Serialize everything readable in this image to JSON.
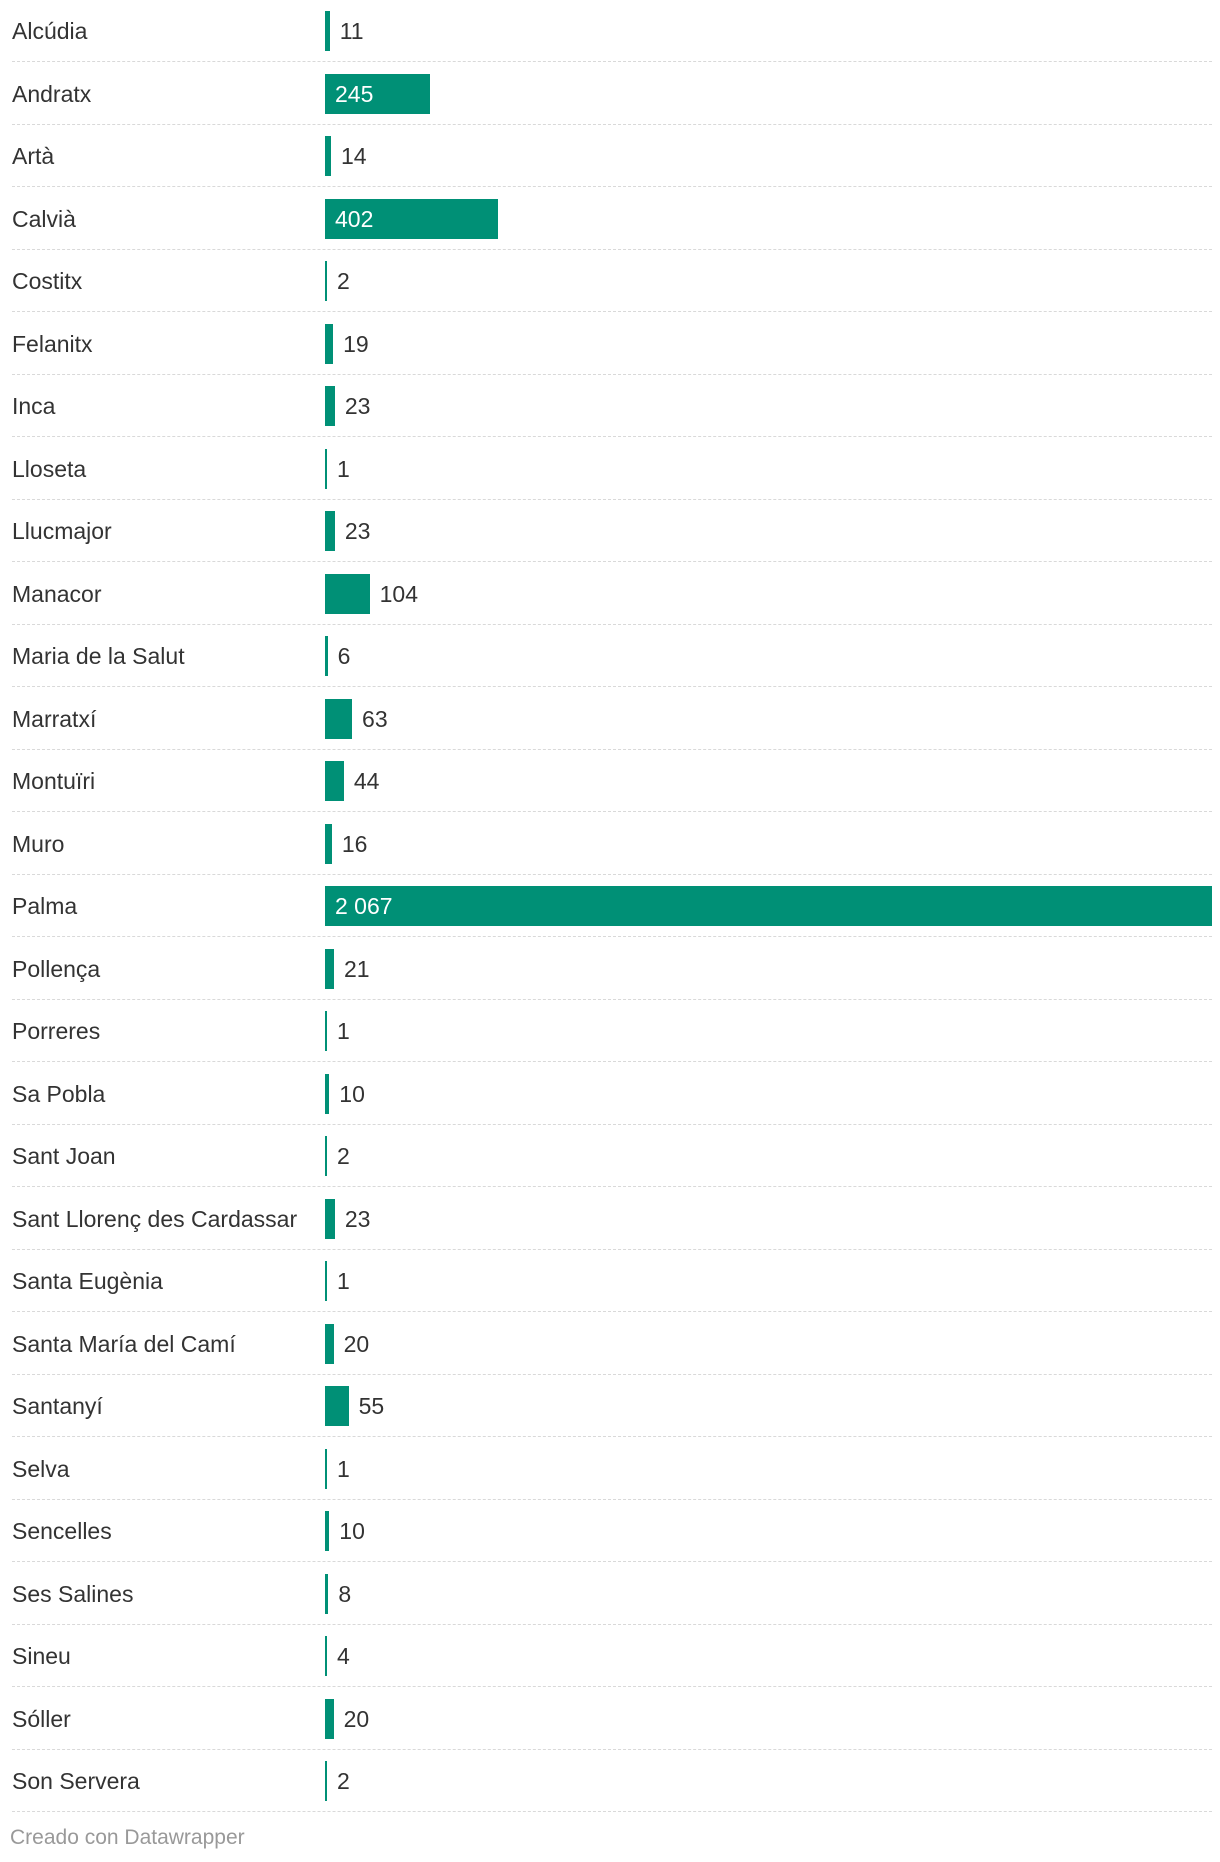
{
  "chart_data": {
    "type": "bar",
    "orientation": "horizontal",
    "bar_color": "#009076",
    "categories": [
      "Alcúdia",
      "Andratx",
      "Artà",
      "Calvià",
      "Costitx",
      "Felanitx",
      "Inca",
      "Lloseta",
      "Llucmajor",
      "Manacor",
      "Maria de la Salut",
      "Marratxí",
      "Montuïri",
      "Muro",
      "Palma",
      "Pollença",
      "Porreres",
      "Sa Pobla",
      "Sant Joan",
      "Sant Llorenç des Cardassar",
      "Santa Eugènia",
      "Santa María del Camí",
      "Santanyí",
      "Selva",
      "Sencelles",
      "Ses Salines",
      "Sineu",
      "Sóller",
      "Son Servera"
    ],
    "values": [
      11,
      245,
      14,
      402,
      2,
      19,
      23,
      1,
      23,
      104,
      6,
      63,
      44,
      16,
      2067,
      21,
      1,
      10,
      2,
      23,
      1,
      20,
      55,
      1,
      10,
      8,
      4,
      20,
      2
    ],
    "value_labels": [
      "11",
      "245",
      "14",
      "402",
      "2",
      "19",
      "23",
      "1",
      "23",
      "104",
      "6",
      "63",
      "44",
      "16",
      "2 067",
      "21",
      "1",
      "10",
      "2",
      "23",
      "1",
      "20",
      "55",
      "1",
      "10",
      "8",
      "4",
      "20",
      "2"
    ]
  },
  "footer": {
    "credit": "Creado con Datawrapper"
  }
}
